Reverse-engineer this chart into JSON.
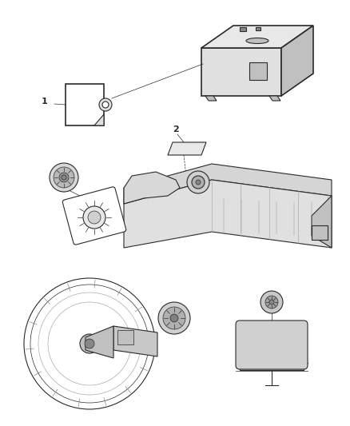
{
  "bg_color": "#ffffff",
  "line_color": "#2a2a2a",
  "label_color": "#222222",
  "label1": "1",
  "label2": "2",
  "figsize": [
    4.38,
    5.33
  ],
  "dpi": 100,
  "lw_thin": 0.5,
  "lw_med": 0.8,
  "lw_thick": 1.2,
  "gray_light": "#e0e0e0",
  "gray_mid": "#c0c0c0",
  "gray_dark": "#888888"
}
